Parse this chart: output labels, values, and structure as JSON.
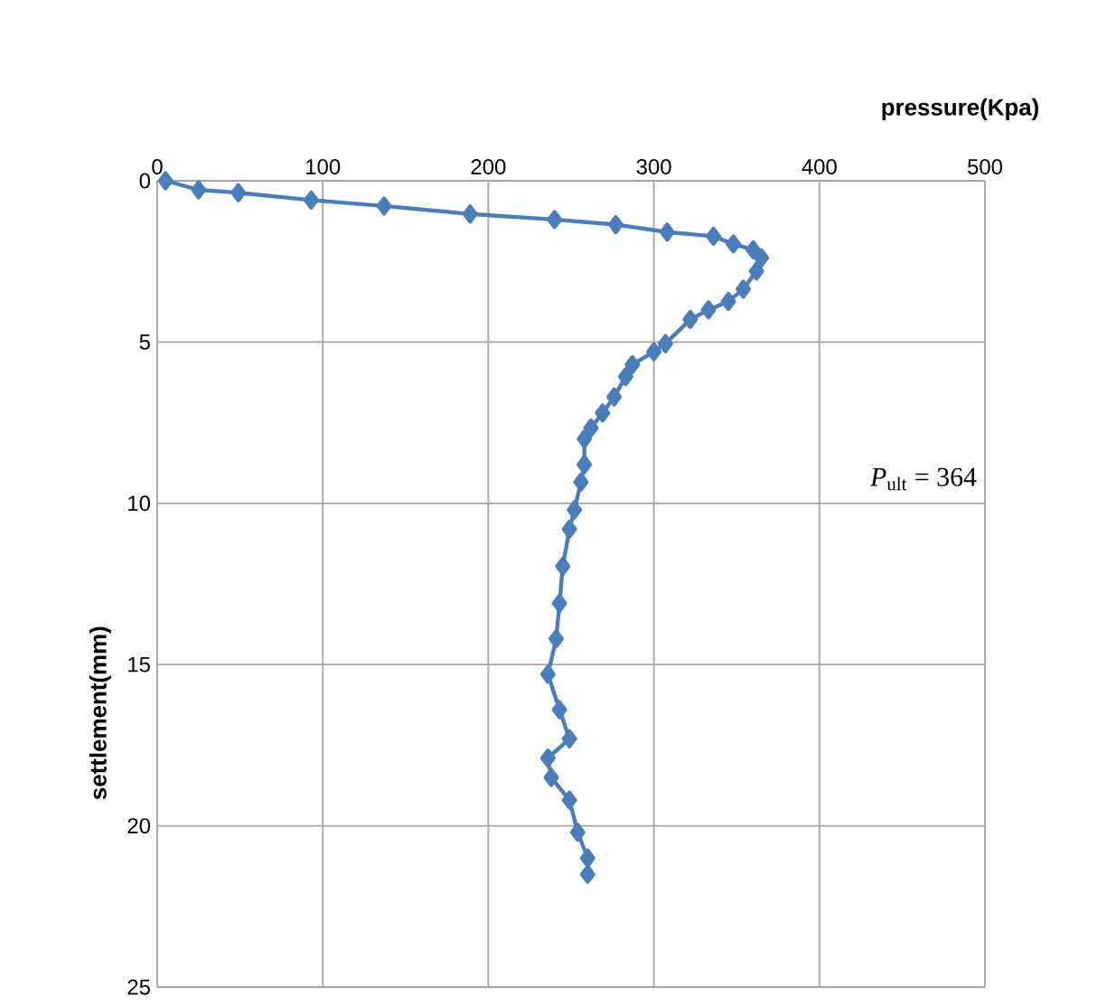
{
  "chart_data": {
    "type": "line",
    "xlabel": "pressure(Kpa)",
    "ylabel": "settlement(mm)",
    "annotations": [
      "*P*$_{ult}$ = 364"
    ],
    "xlim": [
      0,
      500
    ],
    "xticks": [
      0,
      100,
      200,
      300,
      400,
      500
    ],
    "ylim": [
      25,
      0
    ],
    "yticks": [
      0,
      5,
      10,
      15,
      20,
      25
    ],
    "grid": true,
    "marker": "diamond",
    "line_style": "solid",
    "series": [
      {
        "color": "#4a7ebb",
        "x": [
          5,
          25,
          49,
          93,
          137,
          189,
          240,
          277,
          308,
          336,
          348,
          360,
          365,
          362,
          354,
          345,
          333,
          322,
          307,
          300,
          287,
          283,
          276,
          269,
          262,
          258,
          258,
          256,
          252,
          249,
          245,
          243,
          241,
          236,
          243,
          249,
          236,
          238,
          249,
          254,
          260,
          260
        ],
        "values": [
          0,
          0.28,
          0.37,
          0.6,
          0.78,
          1.03,
          1.2,
          1.36,
          1.59,
          1.72,
          1.96,
          2.14,
          2.39,
          2.8,
          3.36,
          3.74,
          4.0,
          4.3,
          5.05,
          5.3,
          5.7,
          6.07,
          6.7,
          7.2,
          7.66,
          8.0,
          8.8,
          9.34,
          10.2,
          10.8,
          11.95,
          13.1,
          14.2,
          15.3,
          16.4,
          17.3,
          17.9,
          18.5,
          19.2,
          20.2,
          21.0,
          21.5
        ]
      }
    ]
  }
}
